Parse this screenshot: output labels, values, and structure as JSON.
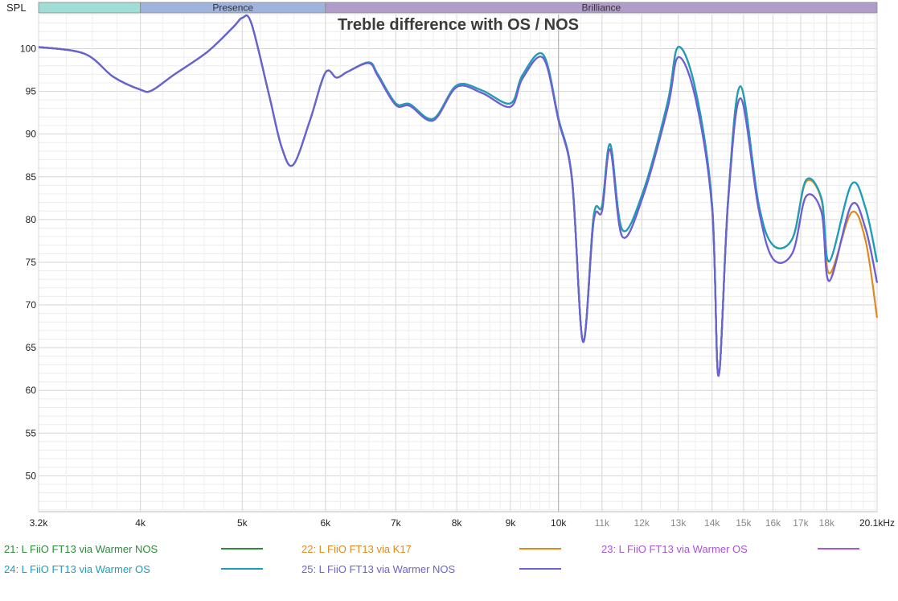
{
  "chart_data": {
    "type": "line",
    "title": "Treble difference with OS / NOS",
    "ylabel": "SPL",
    "xscale": "log",
    "xlim": [
      3200,
      20100
    ],
    "ylim": [
      45.8,
      104
    ],
    "grid": true,
    "legend_placement": "bottom",
    "yticks": [
      50,
      55,
      60,
      65,
      70,
      75,
      80,
      85,
      90,
      95,
      100
    ],
    "xticks": [
      {
        "value": 3200,
        "label": "3.2k",
        "major": true
      },
      {
        "value": 4000,
        "label": "4k",
        "major": true
      },
      {
        "value": 5000,
        "label": "5k",
        "major": true
      },
      {
        "value": 6000,
        "label": "6k",
        "major": true
      },
      {
        "value": 7000,
        "label": "7k",
        "major": true
      },
      {
        "value": 8000,
        "label": "8k",
        "major": true
      },
      {
        "value": 9000,
        "label": "9k",
        "major": true
      },
      {
        "value": 10000,
        "label": "10k",
        "major": true
      },
      {
        "value": 11000,
        "label": "11k",
        "major": false
      },
      {
        "value": 12000,
        "label": "12k",
        "major": false
      },
      {
        "value": 13000,
        "label": "13k",
        "major": false
      },
      {
        "value": 14000,
        "label": "14k",
        "major": false
      },
      {
        "value": 15000,
        "label": "15k",
        "major": false
      },
      {
        "value": 16000,
        "label": "16k",
        "major": false
      },
      {
        "value": 17000,
        "label": "17k",
        "major": false
      },
      {
        "value": 18000,
        "label": "18k",
        "major": false
      },
      {
        "value": 20100,
        "label": "20.1kHz",
        "major": true
      }
    ],
    "bands": [
      {
        "label": "",
        "from": 3200,
        "to": 4000,
        "color": "#a0ddd6"
      },
      {
        "label": "Presence",
        "from": 4000,
        "to": 6000,
        "color": "#9fb3dc"
      },
      {
        "label": "Brilliance",
        "from": 6000,
        "to": 20100,
        "color": "#b09cc8"
      }
    ],
    "x": [
      3200,
      3540,
      3770,
      4000,
      4100,
      4300,
      4630,
      4900,
      5000,
      5100,
      5300,
      5450,
      5590,
      5800,
      6000,
      6150,
      6300,
      6600,
      6730,
      7000,
      7220,
      7600,
      8000,
      8460,
      9000,
      9240,
      9670,
      10000,
      10300,
      10550,
      10800,
      11000,
      11200,
      11500,
      12040,
      12700,
      13000,
      13500,
      14000,
      14200,
      14500,
      14900,
      15500,
      16000,
      16700,
      17200,
      17800,
      18100,
      19000,
      19600,
      20100
    ],
    "series": [
      {
        "name": "21: L FiiO FT13 via Warmer NOS",
        "color": "#2e8b3a",
        "values": [
          100.2,
          99.4,
          96.7,
          95.2,
          95.1,
          96.9,
          99.6,
          102.5,
          103.6,
          103.0,
          94.7,
          88.5,
          86.4,
          91.6,
          97.2,
          96.6,
          97.3,
          98.4,
          97.0,
          93.6,
          93.5,
          91.8,
          95.7,
          95.1,
          93.6,
          96.9,
          99.3,
          91.8,
          84.8,
          65.7,
          80.4,
          81.6,
          88.8,
          78.8,
          83.3,
          93.7,
          100.2,
          95.2,
          81.8,
          61.7,
          82.3,
          95.6,
          81.9,
          77.0,
          77.8,
          84.6,
          82.4,
          75.1,
          84.1,
          81.3,
          75.0
        ]
      },
      {
        "name": "22: L FiiO FT13 via K17",
        "color": "#e08a1e",
        "values": [
          100.2,
          99.4,
          96.7,
          95.2,
          95.1,
          96.9,
          99.6,
          102.5,
          103.6,
          103.0,
          94.7,
          88.5,
          86.4,
          91.6,
          97.2,
          96.6,
          97.3,
          98.4,
          97.0,
          93.6,
          93.5,
          91.8,
          95.7,
          95.1,
          93.6,
          96.9,
          99.3,
          91.8,
          84.8,
          65.7,
          80.4,
          81.6,
          88.8,
          78.8,
          83.3,
          93.7,
          100.2,
          95.2,
          81.8,
          61.7,
          82.3,
          95.6,
          81.9,
          77.0,
          77.8,
          84.4,
          82.2,
          73.7,
          80.8,
          77.5,
          68.5
        ]
      },
      {
        "name": "23: L FiiO FT13 via Warmer OS",
        "color": "#a855d6",
        "values": [
          100.2,
          99.4,
          96.7,
          95.2,
          95.1,
          96.9,
          99.6,
          102.5,
          103.6,
          103.0,
          94.7,
          88.5,
          86.4,
          91.6,
          97.2,
          96.6,
          97.3,
          98.3,
          96.8,
          93.4,
          93.3,
          91.6,
          95.5,
          94.8,
          93.2,
          96.5,
          98.9,
          91.6,
          84.6,
          65.7,
          79.8,
          81.0,
          88.2,
          78.0,
          82.8,
          93.0,
          99.0,
          94.2,
          81.3,
          61.7,
          82.0,
          94.2,
          81.3,
          75.4,
          76.1,
          82.7,
          80.8,
          72.8,
          81.7,
          78.9,
          72.6
        ]
      },
      {
        "name": "24: L FiiO FT13 via Warmer OS",
        "color": "#1a9fc0",
        "values": [
          100.2,
          99.4,
          96.7,
          95.2,
          95.1,
          96.9,
          99.6,
          102.5,
          103.6,
          103.0,
          94.7,
          88.5,
          86.4,
          91.6,
          97.2,
          96.6,
          97.3,
          98.4,
          97.0,
          93.6,
          93.5,
          91.8,
          95.7,
          95.1,
          93.6,
          96.9,
          99.3,
          91.8,
          84.8,
          65.7,
          80.4,
          81.6,
          88.8,
          78.8,
          83.3,
          93.7,
          100.2,
          95.2,
          81.8,
          61.7,
          82.3,
          95.6,
          81.9,
          77.0,
          77.8,
          84.6,
          82.4,
          75.1,
          84.1,
          81.3,
          75.0
        ]
      },
      {
        "name": "25: L FiiO FT13 via Warmer NOS",
        "color": "#6a62d2",
        "values": [
          100.2,
          99.4,
          96.7,
          95.2,
          95.1,
          96.9,
          99.6,
          102.5,
          103.6,
          103.0,
          94.7,
          88.5,
          86.4,
          91.6,
          97.2,
          96.6,
          97.3,
          98.3,
          96.8,
          93.4,
          93.3,
          91.6,
          95.5,
          94.8,
          93.2,
          96.5,
          98.9,
          91.6,
          84.6,
          65.7,
          79.8,
          81.0,
          88.2,
          78.0,
          82.8,
          93.0,
          99.0,
          94.2,
          81.3,
          61.7,
          82.0,
          94.2,
          81.3,
          75.4,
          76.1,
          82.7,
          80.8,
          72.8,
          81.7,
          78.9,
          72.6
        ]
      }
    ]
  }
}
